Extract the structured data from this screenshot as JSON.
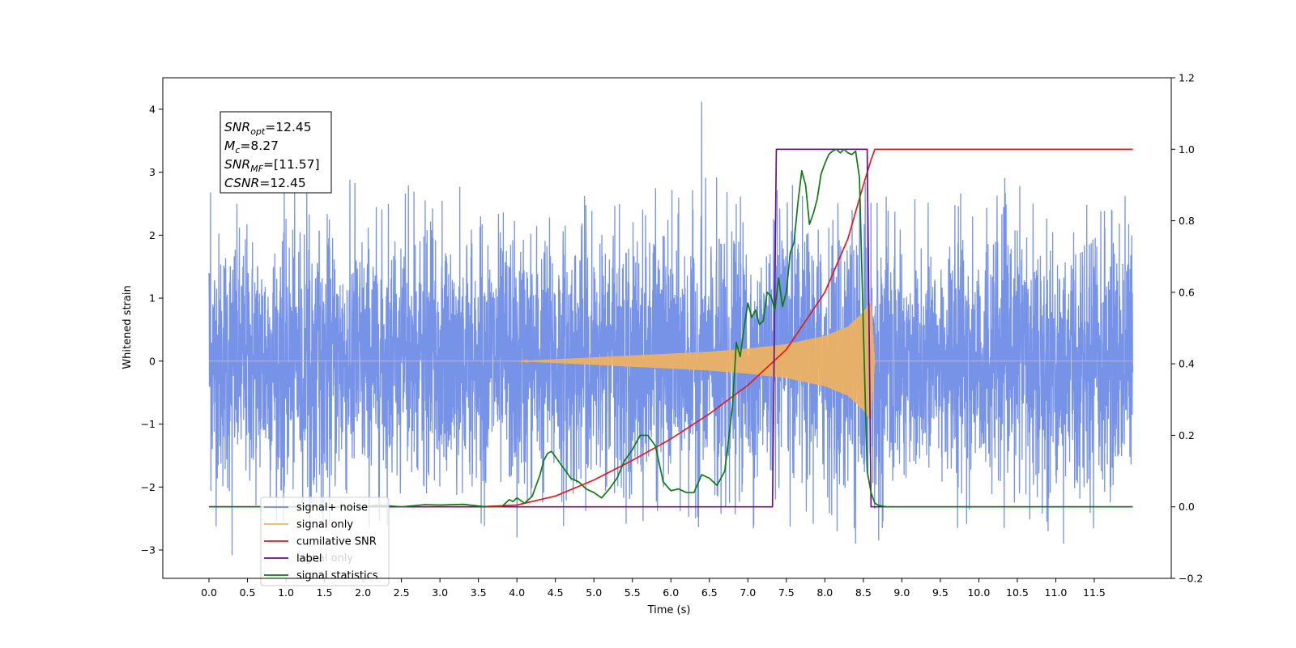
{
  "chart_data": {
    "type": "line",
    "xlabel": "Time (s)",
    "ylabel": "Whitened strain",
    "xlim": [
      -0.6,
      12.5
    ],
    "ylim": [
      -3.45,
      4.5
    ],
    "y2lim": [
      -0.2,
      1.2
    ],
    "x_ticks": [
      0.0,
      0.5,
      1.0,
      1.5,
      2.0,
      2.5,
      3.0,
      3.5,
      4.0,
      4.5,
      5.0,
      5.5,
      6.0,
      6.5,
      7.0,
      7.5,
      8.0,
      8.5,
      9.0,
      9.5,
      10.0,
      10.5,
      11.0,
      11.5
    ],
    "x_tick_labels": [
      "0.0",
      "0.5",
      "1.0",
      "1.5",
      "2.0",
      "2.5",
      "3.0",
      "3.5",
      "4.0",
      "4.5",
      "5.0",
      "5.5",
      "6.0",
      "6.5",
      "7.0",
      "7.5",
      "8.0",
      "8.5",
      "9.0",
      "9.5",
      "10.0",
      "10.5",
      "11.0",
      "11.5"
    ],
    "y_ticks": [
      -3,
      -2,
      -1,
      0,
      1,
      2,
      3,
      4
    ],
    "y_tick_labels": [
      "−3",
      "−2",
      "−1",
      "0",
      "1",
      "2",
      "3",
      "4"
    ],
    "y2_ticks": [
      -0.2,
      0.0,
      0.2,
      0.4,
      0.6,
      0.8,
      1.0,
      1.2
    ],
    "y2_tick_labels": [
      "−0.2",
      "0.0",
      "0.2",
      "0.4",
      "0.6",
      "0.8",
      "1.0",
      "1.2"
    ],
    "legend_position": "bottom-left",
    "legend": [
      "signal+ noise",
      "signal only",
      "cumilative SNR",
      "label",
      "signal statistics"
    ],
    "ghost_legend_text": "signal only",
    "annotation": {
      "lines": [
        {
          "base": "SNR",
          "sub": "opt",
          "rest": "=12.45"
        },
        {
          "base": "M",
          "sub": "c",
          "rest": "=8.27"
        },
        {
          "base": "SNR",
          "sub": "MF",
          "rest": "=[11.57]"
        },
        {
          "base": "CSNR",
          "sub": "",
          "rest": "=12.45"
        }
      ]
    },
    "series": [
      {
        "name": "signal+ noise",
        "axis": "left",
        "color": "#6b8ae6",
        "description": "noisy whitened strain, roughly Gaussian with std about 1, range about -3.1 to 4.1",
        "x_range": [
          0.0,
          12.0
        ],
        "std": 1.0,
        "spikes": [
          [
            0.0,
            1.4
          ],
          [
            0.02,
            2.68
          ],
          [
            0.3,
            -3.08
          ],
          [
            6.4,
            4.12
          ],
          [
            4.0,
            -2.8
          ],
          [
            8.4,
            -2.9
          ],
          [
            8.7,
            -2.85
          ],
          [
            11.1,
            -2.9
          ],
          [
            11.9,
            2.62
          ]
        ]
      },
      {
        "name": "signal only",
        "axis": "left",
        "color": "#f2b35c",
        "description": "chirp that grows in amplitude from 0 near t=4.0 to about 0.95 at t=8.6, then ends",
        "envelope_x": [
          0.0,
          4.0,
          5.0,
          6.0,
          6.5,
          7.0,
          7.5,
          8.0,
          8.3,
          8.5,
          8.6,
          8.65,
          12.0
        ],
        "envelope_y": [
          0.0,
          0.0,
          0.06,
          0.12,
          0.15,
          0.2,
          0.27,
          0.4,
          0.55,
          0.78,
          0.95,
          0.0,
          0.0
        ]
      },
      {
        "name": "cumilative SNR",
        "axis": "right",
        "color": "#e8191b",
        "x": [
          0.0,
          3.5,
          4.0,
          4.5,
          5.0,
          5.5,
          6.0,
          6.5,
          7.0,
          7.5,
          8.0,
          8.3,
          8.5,
          8.6,
          8.65,
          12.0
        ],
        "y": [
          0.0,
          0.0,
          0.005,
          0.03,
          0.075,
          0.13,
          0.19,
          0.26,
          0.34,
          0.44,
          0.6,
          0.75,
          0.9,
          0.97,
          1.0,
          1.0
        ]
      },
      {
        "name": "label",
        "axis": "right",
        "color": "#6a0f8e",
        "x": [
          0.0,
          7.32,
          7.37,
          8.55,
          8.6,
          12.0
        ],
        "y": [
          0.0,
          0.0,
          1.0,
          1.0,
          0.0,
          0.0
        ]
      },
      {
        "name": "signal statistics",
        "axis": "right",
        "color": "#0c7c10",
        "x": [
          0.0,
          2.0,
          2.2,
          2.5,
          2.8,
          3.0,
          3.3,
          3.6,
          3.8,
          3.9,
          3.95,
          4.0,
          4.1,
          4.2,
          4.3,
          4.35,
          4.4,
          4.45,
          4.5,
          4.6,
          4.7,
          4.8,
          4.9,
          5.0,
          5.1,
          5.2,
          5.3,
          5.4,
          5.5,
          5.6,
          5.7,
          5.8,
          5.9,
          6.0,
          6.1,
          6.2,
          6.3,
          6.4,
          6.5,
          6.6,
          6.7,
          6.8,
          6.85,
          6.9,
          6.95,
          7.0,
          7.05,
          7.1,
          7.15,
          7.2,
          7.25,
          7.3,
          7.35,
          7.4,
          7.45,
          7.5,
          7.55,
          7.6,
          7.65,
          7.7,
          7.75,
          7.8,
          7.85,
          7.9,
          7.95,
          8.0,
          8.05,
          8.1,
          8.15,
          8.2,
          8.25,
          8.3,
          8.35,
          8.4,
          8.45,
          8.5,
          8.55,
          8.6,
          8.65,
          8.7,
          8.75,
          8.8,
          12.0
        ],
        "y": [
          0.0,
          0.0,
          0.005,
          0.0,
          0.006,
          0.005,
          0.007,
          0.0,
          0.0,
          0.02,
          0.015,
          0.025,
          0.01,
          0.03,
          0.09,
          0.13,
          0.15,
          0.155,
          0.14,
          0.11,
          0.08,
          0.07,
          0.05,
          0.04,
          0.025,
          0.05,
          0.08,
          0.13,
          0.16,
          0.2,
          0.2,
          0.17,
          0.07,
          0.045,
          0.05,
          0.04,
          0.04,
          0.09,
          0.08,
          0.06,
          0.1,
          0.28,
          0.46,
          0.42,
          0.5,
          0.57,
          0.53,
          0.55,
          0.51,
          0.52,
          0.6,
          0.59,
          0.55,
          0.64,
          0.56,
          0.6,
          0.71,
          0.74,
          0.85,
          0.94,
          0.9,
          0.79,
          0.82,
          0.86,
          0.93,
          0.96,
          0.985,
          0.995,
          1.0,
          0.99,
          1.0,
          0.99,
          0.985,
          0.995,
          0.92,
          0.5,
          0.1,
          0.04,
          0.01,
          0.004,
          0.002,
          0.0,
          0.0
        ]
      }
    ]
  }
}
